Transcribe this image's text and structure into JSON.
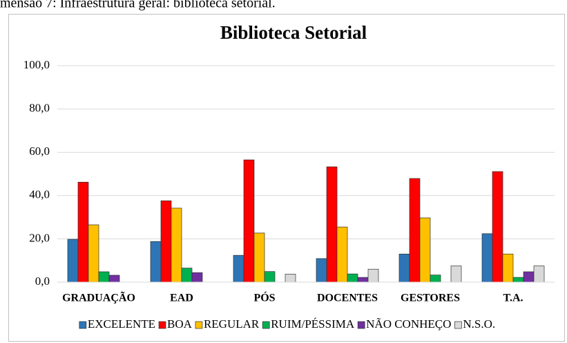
{
  "caption": "mensão 7: Infraestrutura geral: biblioteca setorial.",
  "chart_data": {
    "type": "bar",
    "title": "Biblioteca Setorial",
    "categories": [
      "GRADUAÇÃO",
      "EAD",
      "PÓS",
      "DOCENTES",
      "GESTORES",
      "T.A."
    ],
    "series": [
      {
        "name": "EXCELENTE",
        "color": "#2e75b6",
        "values": [
          19.8,
          18.8,
          12.4,
          10.9,
          13.0,
          22.4
        ]
      },
      {
        "name": "BOA",
        "color": "#ff0000",
        "values": [
          46.2,
          37.6,
          56.5,
          53.3,
          47.9,
          51.1
        ]
      },
      {
        "name": "REGULAR",
        "color": "#ffc000",
        "values": [
          26.5,
          34.2,
          22.7,
          25.5,
          29.7,
          13.0
        ]
      },
      {
        "name": "RUIM/PÉSSIMA",
        "color": "#00b050",
        "values": [
          4.8,
          6.5,
          4.9,
          3.8,
          3.3,
          2.2
        ]
      },
      {
        "name": "NÃO CONHEÇO",
        "color": "#7030a0",
        "values": [
          3.2,
          4.4,
          0,
          2.2,
          0,
          4.8
        ]
      },
      {
        "name": "N.S.O.",
        "color": "#d9d9d9",
        "values": [
          0,
          0,
          3.7,
          6.0,
          7.5,
          7.5
        ]
      }
    ],
    "ylim": [
      0,
      100
    ],
    "yticks": [
      {
        "value": 0,
        "label": "0,0"
      },
      {
        "value": 20,
        "label": "20,0"
      },
      {
        "value": 40,
        "label": "40,0"
      },
      {
        "value": 60,
        "label": "60,0"
      },
      {
        "value": 80,
        "label": "80,0"
      },
      {
        "value": 100,
        "label": "100,0"
      }
    ],
    "grid": true,
    "legend": "bottom"
  }
}
